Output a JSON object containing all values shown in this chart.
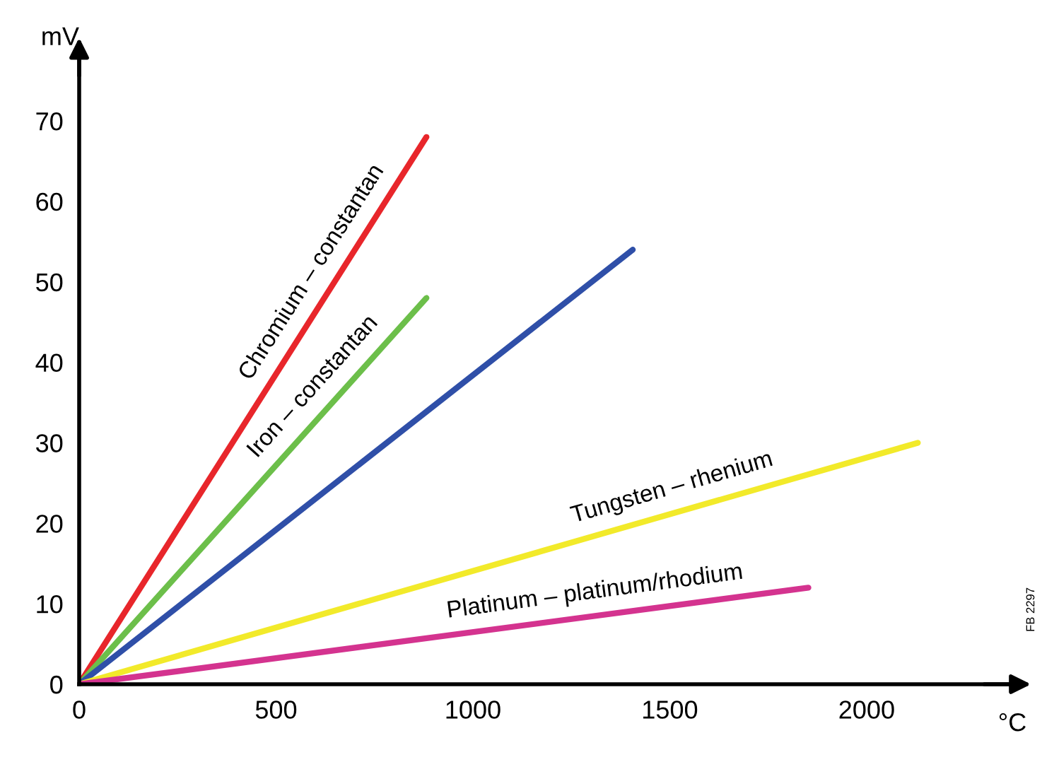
{
  "chart_data": {
    "type": "line",
    "xlabel": "°C",
    "ylabel": "mV",
    "xlim": [
      0,
      2370
    ],
    "ylim": [
      0,
      78
    ],
    "xticks": [
      0,
      500,
      1000,
      1500,
      2000
    ],
    "yticks": [
      0,
      10,
      20,
      30,
      40,
      50,
      60,
      70
    ],
    "grid": false,
    "marker": "none",
    "line_style": "solid",
    "series": [
      {
        "name": "Chromium – constantan",
        "color": "#e8262b",
        "x": [
          0,
          882
        ],
        "values": [
          0,
          68
        ]
      },
      {
        "name": "Iron – constantan",
        "color": "#6cbf4a",
        "x": [
          0,
          882
        ],
        "values": [
          0,
          48
        ]
      },
      {
        "color": "#2f4fa8",
        "x": [
          0,
          1406
        ],
        "values": [
          0,
          54
        ]
      },
      {
        "name": "Tungsten – rhenium",
        "color": "#f2ea2a",
        "x": [
          0,
          2130
        ],
        "values": [
          0,
          30
        ]
      },
      {
        "name": "Platinum – platinum/rhodium",
        "color": "#d4338f",
        "x": [
          0,
          1852
        ],
        "values": [
          0,
          12
        ]
      }
    ],
    "annotations": [
      "FB 2297"
    ]
  }
}
